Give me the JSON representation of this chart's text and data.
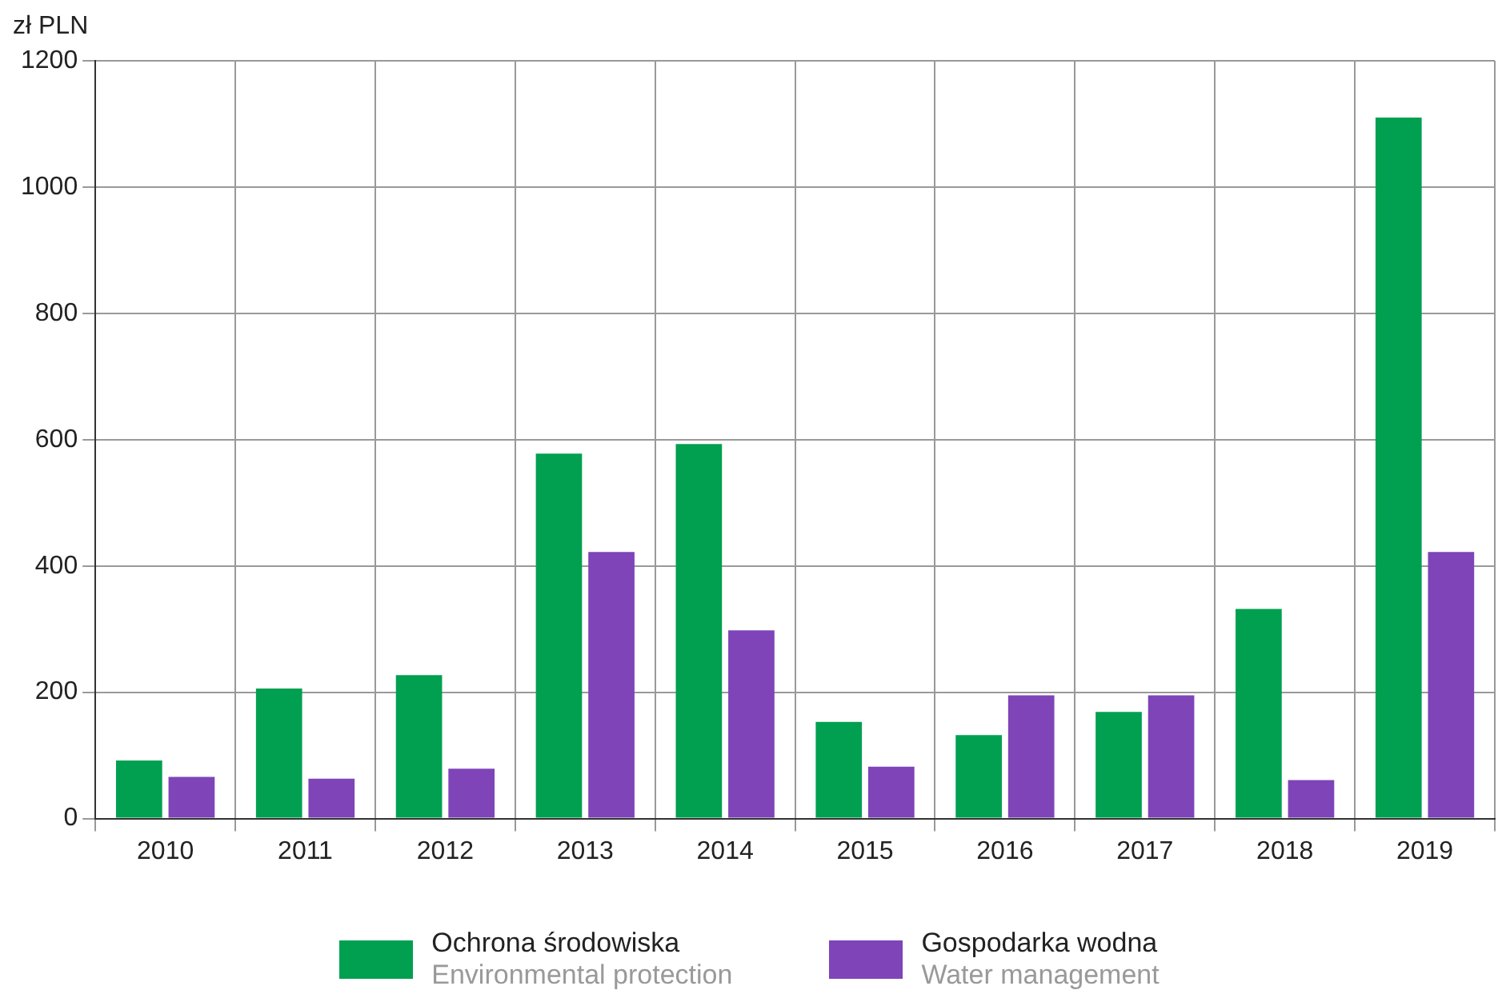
{
  "chart_data": {
    "type": "bar",
    "ylabel": "zł PLN",
    "categories": [
      "2010",
      "2011",
      "2012",
      "2013",
      "2014",
      "2015",
      "2016",
      "2017",
      "2018",
      "2019"
    ],
    "series": [
      {
        "name": "Ochrona środowiska\nEnvironmental protection",
        "color": "#00a050",
        "values": [
          92,
          206,
          227,
          578,
          593,
          153,
          132,
          169,
          332,
          1110
        ]
      },
      {
        "name": "Gospodarka wodna\nWater management",
        "color": "#7e44b8",
        "values": [
          66,
          63,
          79,
          422,
          298,
          82,
          195,
          195,
          61,
          422
        ]
      }
    ],
    "ylim": [
      0,
      1200
    ],
    "yticks": [
      0,
      200,
      400,
      600,
      800,
      1000,
      1200
    ],
    "grid": true,
    "legend": "bottom"
  }
}
